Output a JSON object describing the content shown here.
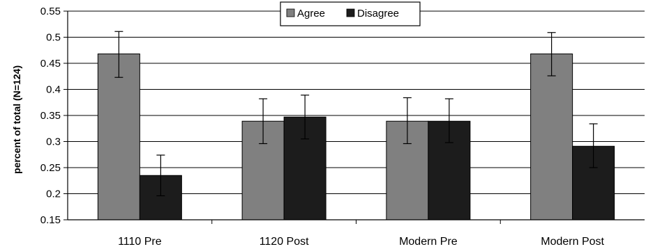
{
  "chart_data": {
    "type": "bar",
    "title": "",
    "xlabel": "",
    "ylabel": "percent of total (N=124)",
    "ylim": [
      0.15,
      0.55
    ],
    "yticks": [
      "0.15",
      "0.2",
      "0.25",
      "0.3",
      "0.35",
      "0.4",
      "0.45",
      "0.5",
      "0.55"
    ],
    "grid": true,
    "legend_position": "top-center",
    "categories": [
      "1110 Pre",
      "1120 Post",
      "Modern Pre",
      "Modern Post"
    ],
    "series": [
      {
        "name": "Agree",
        "color": "#808080",
        "values": [
          0.468,
          0.339,
          0.339,
          0.468
        ],
        "error_low": [
          0.423,
          0.296,
          0.296,
          0.426
        ],
        "error_high": [
          0.511,
          0.382,
          0.384,
          0.509
        ]
      },
      {
        "name": "Disagree",
        "color": "#1c1c1c",
        "values": [
          0.235,
          0.347,
          0.339,
          0.291
        ],
        "error_low": [
          0.196,
          0.305,
          0.298,
          0.25
        ],
        "error_high": [
          0.274,
          0.389,
          0.382,
          0.334
        ]
      }
    ]
  }
}
